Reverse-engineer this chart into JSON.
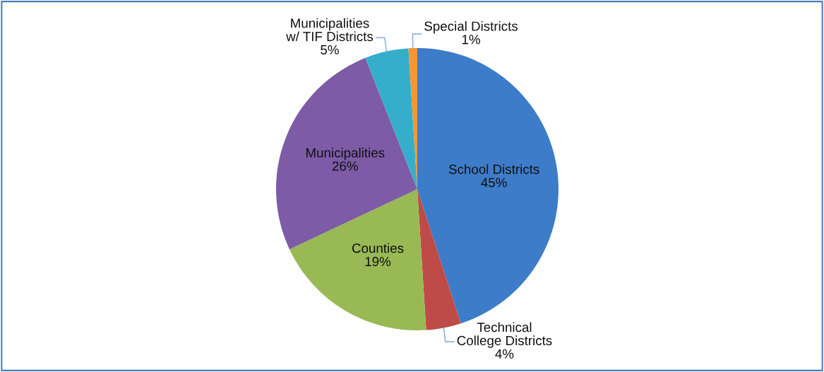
{
  "chart_data": {
    "type": "pie",
    "categories": [
      "School Districts",
      "Technical\nCollege Districts",
      "Counties",
      "Municipalities",
      "Municipalities\nw/ TIF Districts",
      "Special Districts"
    ],
    "values": [
      45,
      4,
      19,
      26,
      5,
      1
    ],
    "value_labels": [
      "45%",
      "4%",
      "19%",
      "26%",
      "5%",
      "1%"
    ],
    "colors": [
      "#3d7cc9",
      "#be4b48",
      "#98b954",
      "#7d5ba6",
      "#35aecb",
      "#f79533"
    ],
    "legend": false
  }
}
